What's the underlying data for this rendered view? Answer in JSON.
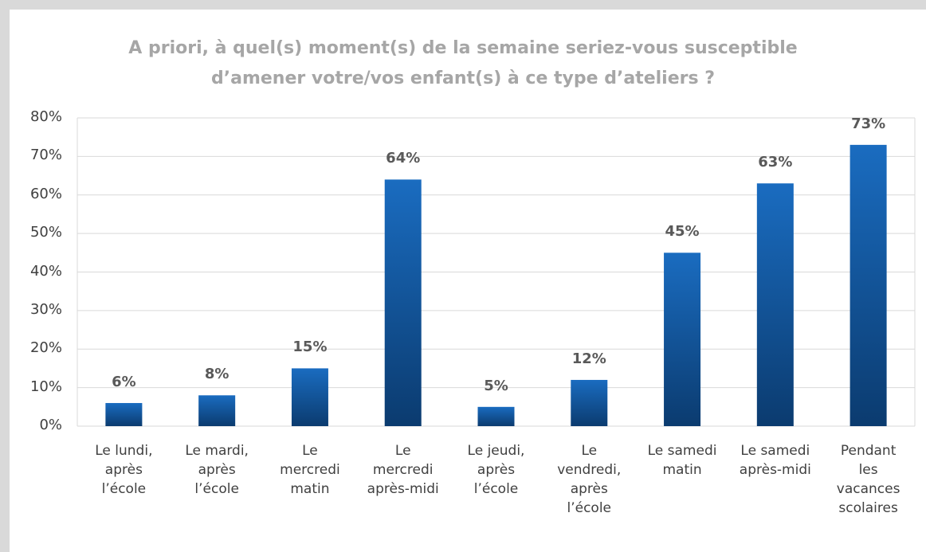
{
  "chart_data": {
    "type": "bar",
    "title": "A priori, à quel(s) moment(s) de la semaine seriez-vous susceptible\nd’amener votre/vos enfant(s) à ce type d’ateliers ?",
    "categories": [
      "Le lundi,\naprès\nl’école",
      "Le mardi,\naprès\nl’école",
      "Le\nmercredi\nmatin",
      "Le\nmercredi\naprès-midi",
      "Le jeudi,\naprès\nl’école",
      "Le\nvendredi,\naprès\nl’école",
      "Le samedi\nmatin",
      "Le samedi\naprès-midi",
      "Pendant\nles\nvacances\nscolaires"
    ],
    "values": [
      6,
      8,
      15,
      64,
      5,
      12,
      45,
      63,
      73
    ],
    "value_labels": [
      "6%",
      "8%",
      "15%",
      "64%",
      "5%",
      "12%",
      "45%",
      "63%",
      "73%"
    ],
    "color": "#1a66b3",
    "ylim": [
      0,
      80
    ],
    "yticks": [
      {
        "value": 0,
        "label": "0%"
      },
      {
        "value": 10,
        "label": "10%"
      },
      {
        "value": 20,
        "label": "20%"
      },
      {
        "value": 30,
        "label": "30%"
      },
      {
        "value": 40,
        "label": "40%"
      },
      {
        "value": 50,
        "label": "50%"
      },
      {
        "value": 60,
        "label": "60%"
      },
      {
        "value": 70,
        "label": "70%"
      },
      {
        "value": 80,
        "label": "80%"
      }
    ],
    "grid": true
  }
}
